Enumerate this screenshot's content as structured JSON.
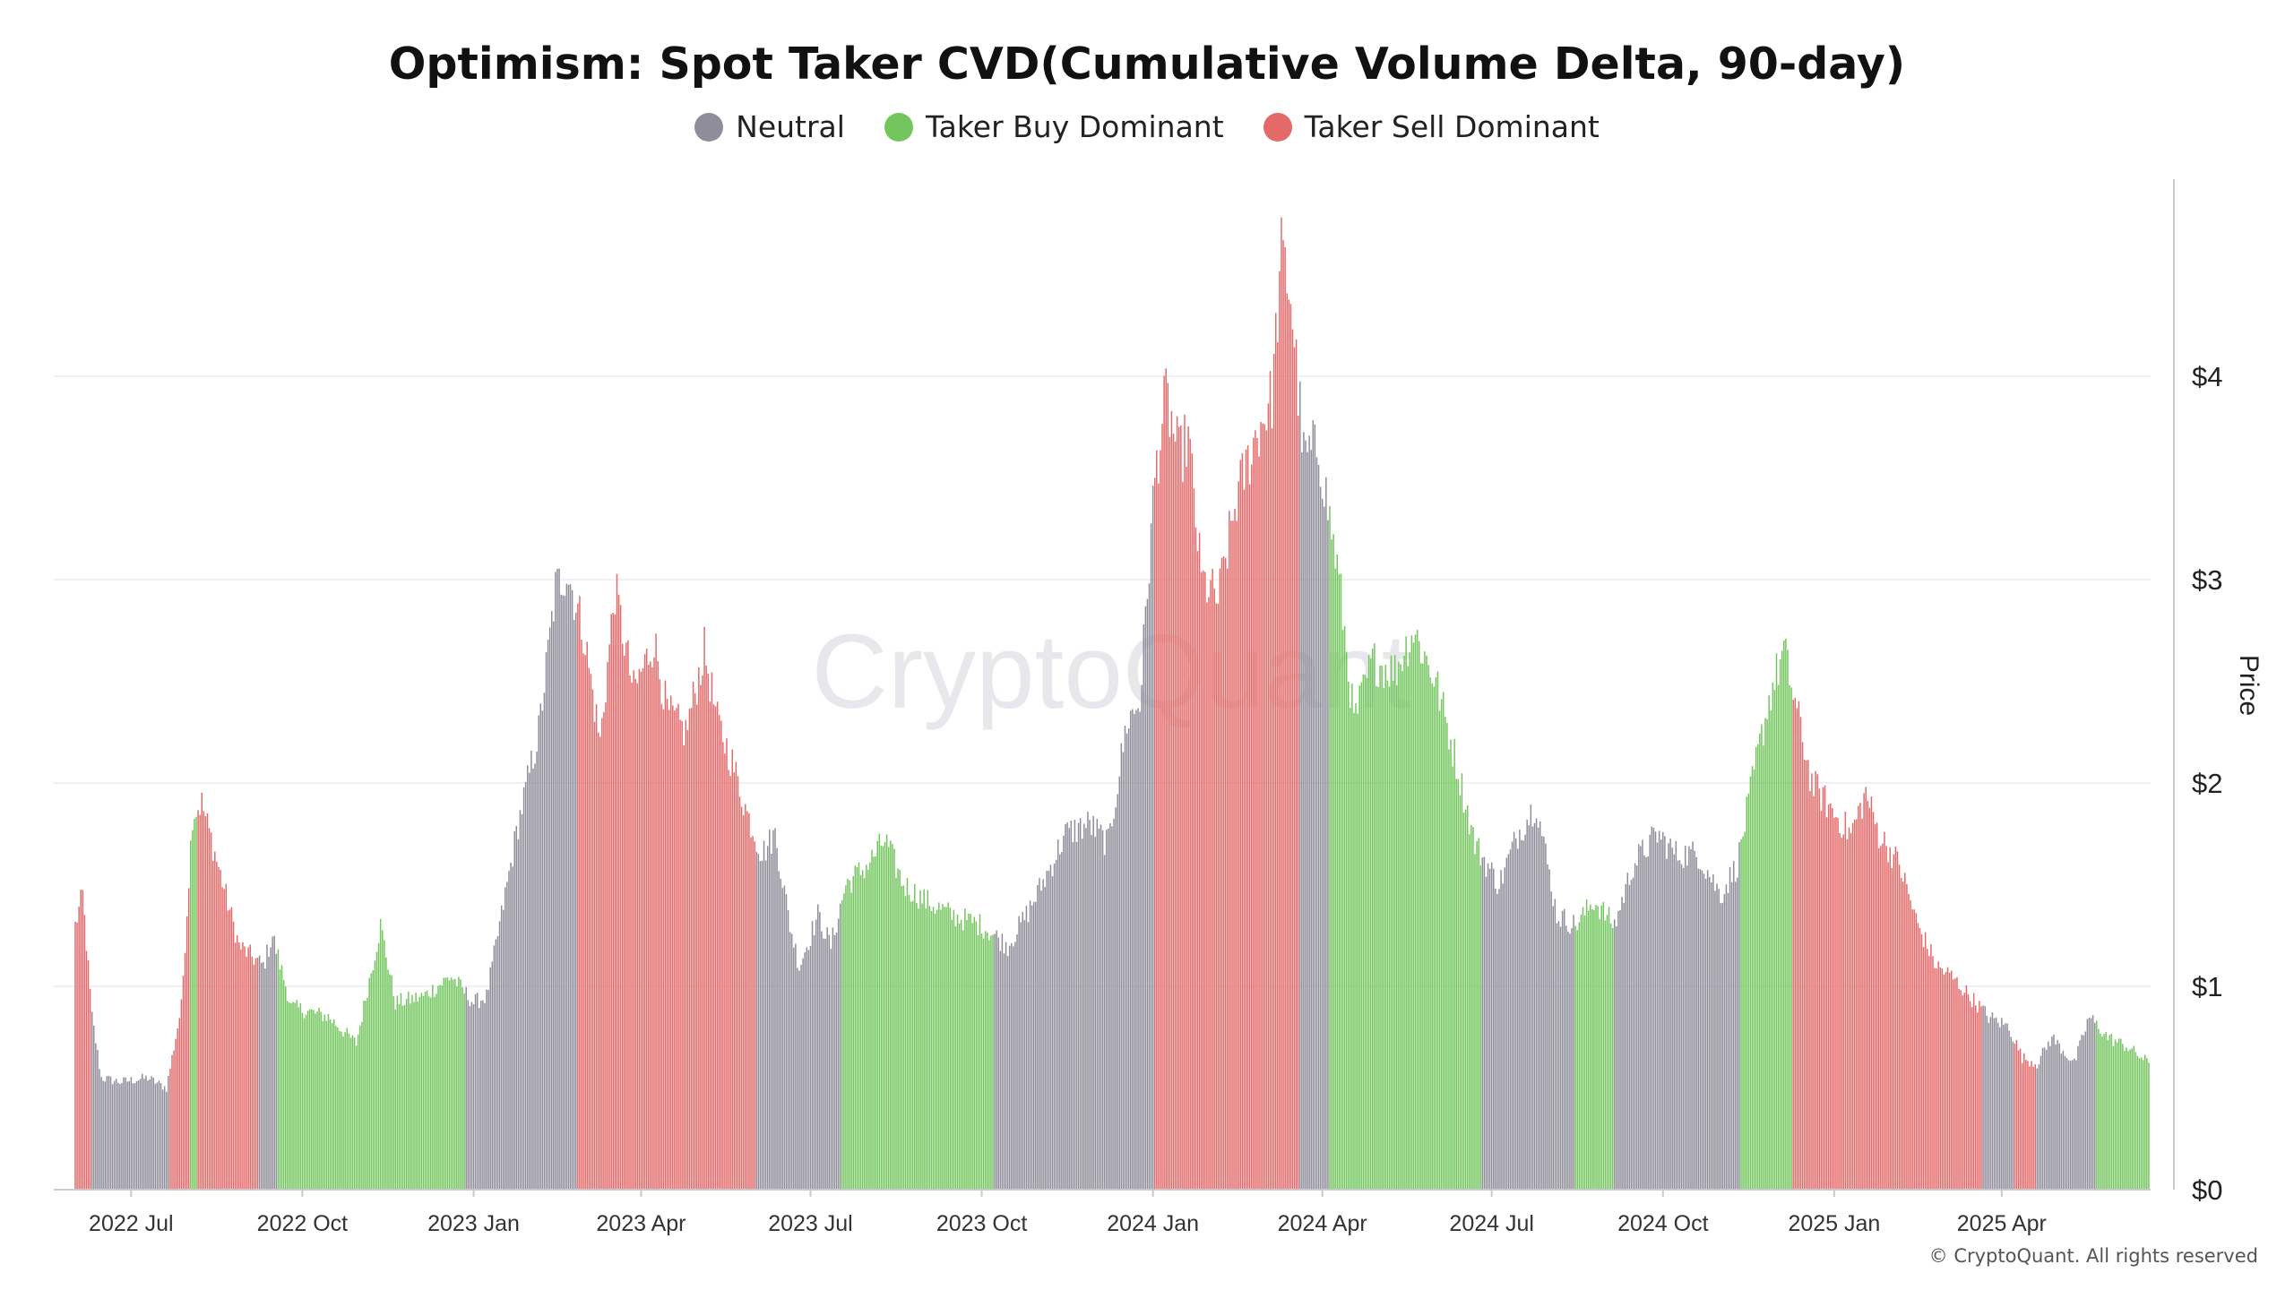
{
  "chart_data": {
    "type": "bar",
    "title": "Optimism: Spot Taker CVD(Cumulative Volume Delta, 90-day)",
    "xlabel": "",
    "ylabel": "Price",
    "y_ticks": [
      "$0",
      "$1",
      "$2",
      "$3",
      "$4"
    ],
    "ylim": [
      0,
      4.9
    ],
    "x_ticks": [
      "2022 Jul",
      "2022 Oct",
      "2023 Jan",
      "2023 Apr",
      "2023 Jul",
      "2023 Oct",
      "2024 Jan",
      "2024 Apr",
      "2024 Jul",
      "2024 Oct",
      "2025 Jan",
      "2025 Apr"
    ],
    "xlim": [
      "2022-06-01",
      "2025-06-20"
    ],
    "grid": true,
    "legend_position": "top-center",
    "series": [
      {
        "name": "Neutral",
        "color": "#8e8d99"
      },
      {
        "name": "Taker Buy Dominant",
        "color": "#72c65d"
      },
      {
        "name": "Taker Sell Dominant",
        "color": "#e46a6a"
      }
    ],
    "price_points": [
      [
        "2022-06-01",
        1.3
      ],
      [
        "2022-06-05",
        1.45
      ],
      [
        "2022-06-10",
        0.85
      ],
      [
        "2022-06-15",
        0.55
      ],
      [
        "2022-06-25",
        0.53
      ],
      [
        "2022-07-10",
        0.55
      ],
      [
        "2022-07-20",
        0.5
      ],
      [
        "2022-07-28",
        0.9
      ],
      [
        "2022-08-03",
        1.85
      ],
      [
        "2022-08-08",
        1.9
      ],
      [
        "2022-08-18",
        1.55
      ],
      [
        "2022-08-28",
        1.2
      ],
      [
        "2022-09-10",
        1.1
      ],
      [
        "2022-09-15",
        1.25
      ],
      [
        "2022-09-25",
        0.9
      ],
      [
        "2022-10-15",
        0.85
      ],
      [
        "2022-10-30",
        0.72
      ],
      [
        "2022-11-08",
        1.12
      ],
      [
        "2022-11-12",
        1.3
      ],
      [
        "2022-11-20",
        0.92
      ],
      [
        "2022-12-05",
        0.95
      ],
      [
        "2022-12-20",
        1.05
      ],
      [
        "2023-01-01",
        0.92
      ],
      [
        "2023-01-08",
        0.95
      ],
      [
        "2023-01-15",
        1.3
      ],
      [
        "2023-01-25",
        1.8
      ],
      [
        "2023-02-05",
        2.25
      ],
      [
        "2023-02-14",
        2.95
      ],
      [
        "2023-02-20",
        3.05
      ],
      [
        "2023-03-01",
        2.75
      ],
      [
        "2023-03-10",
        2.2
      ],
      [
        "2023-03-18",
        2.95
      ],
      [
        "2023-03-28",
        2.45
      ],
      [
        "2023-04-08",
        2.7
      ],
      [
        "2023-04-15",
        2.35
      ],
      [
        "2023-04-25",
        2.25
      ],
      [
        "2023-05-05",
        2.65
      ],
      [
        "2023-05-12",
        2.3
      ],
      [
        "2023-05-20",
        2.1
      ],
      [
        "2023-05-28",
        1.85
      ],
      [
        "2023-06-05",
        1.65
      ],
      [
        "2023-06-12",
        1.75
      ],
      [
        "2023-06-20",
        1.3
      ],
      [
        "2023-06-25",
        1.1
      ],
      [
        "2023-07-05",
        1.35
      ],
      [
        "2023-07-12",
        1.2
      ],
      [
        "2023-07-20",
        1.5
      ],
      [
        "2023-08-01",
        1.6
      ],
      [
        "2023-08-10",
        1.72
      ],
      [
        "2023-08-20",
        1.5
      ],
      [
        "2023-09-01",
        1.42
      ],
      [
        "2023-09-15",
        1.35
      ],
      [
        "2023-10-01",
        1.3
      ],
      [
        "2023-10-15",
        1.2
      ],
      [
        "2023-10-25",
        1.35
      ],
      [
        "2023-11-05",
        1.55
      ],
      [
        "2023-11-15",
        1.75
      ],
      [
        "2023-11-28",
        1.8
      ],
      [
        "2023-12-08",
        1.7
      ],
      [
        "2023-12-18",
        2.3
      ],
      [
        "2023-12-25",
        2.4
      ],
      [
        "2024-01-02",
        3.5
      ],
      [
        "2024-01-08",
        3.9
      ],
      [
        "2024-01-15",
        3.6
      ],
      [
        "2024-01-20",
        3.7
      ],
      [
        "2024-01-27",
        3.0
      ],
      [
        "2024-02-05",
        2.9
      ],
      [
        "2024-02-15",
        3.4
      ],
      [
        "2024-02-25",
        3.7
      ],
      [
        "2024-03-05",
        3.9
      ],
      [
        "2024-03-10",
        4.6
      ],
      [
        "2024-03-15",
        4.4
      ],
      [
        "2024-03-22",
        3.6
      ],
      [
        "2024-03-30",
        3.65
      ],
      [
        "2024-04-10",
        3.0
      ],
      [
        "2024-04-18",
        2.3
      ],
      [
        "2024-04-28",
        2.6
      ],
      [
        "2024-05-10",
        2.55
      ],
      [
        "2024-05-20",
        2.75
      ],
      [
        "2024-06-01",
        2.5
      ],
      [
        "2024-06-12",
        2.1
      ],
      [
        "2024-06-22",
        1.7
      ],
      [
        "2024-07-05",
        1.5
      ],
      [
        "2024-07-15",
        1.75
      ],
      [
        "2024-07-25",
        1.9
      ],
      [
        "2024-08-05",
        1.35
      ],
      [
        "2024-08-15",
        1.3
      ],
      [
        "2024-08-25",
        1.42
      ],
      [
        "2024-09-05",
        1.3
      ],
      [
        "2024-09-15",
        1.6
      ],
      [
        "2024-09-28",
        1.75
      ],
      [
        "2024-10-08",
        1.65
      ],
      [
        "2024-10-20",
        1.65
      ],
      [
        "2024-11-01",
        1.45
      ],
      [
        "2024-11-10",
        1.6
      ],
      [
        "2024-11-20",
        2.1
      ],
      [
        "2024-11-28",
        2.45
      ],
      [
        "2024-12-05",
        2.65
      ],
      [
        "2024-12-12",
        2.35
      ],
      [
        "2024-12-20",
        2.0
      ],
      [
        "2025-01-01",
        1.85
      ],
      [
        "2025-01-10",
        1.75
      ],
      [
        "2025-01-18",
        1.95
      ],
      [
        "2025-01-25",
        1.75
      ],
      [
        "2025-02-05",
        1.6
      ],
      [
        "2025-02-15",
        1.3
      ],
      [
        "2025-02-25",
        1.1
      ],
      [
        "2025-03-05",
        1.05
      ],
      [
        "2025-03-15",
        0.95
      ],
      [
        "2025-03-25",
        0.85
      ],
      [
        "2025-04-05",
        0.8
      ],
      [
        "2025-04-12",
        0.65
      ],
      [
        "2025-04-20",
        0.62
      ],
      [
        "2025-04-28",
        0.75
      ],
      [
        "2025-05-10",
        0.62
      ],
      [
        "2025-05-18",
        0.85
      ],
      [
        "2025-05-28",
        0.75
      ],
      [
        "2025-06-08",
        0.7
      ],
      [
        "2025-06-18",
        0.63
      ]
    ],
    "regimes": [
      {
        "start": "2022-06-01",
        "end": "2022-06-10",
        "class": "Taker Sell Dominant"
      },
      {
        "start": "2022-06-10",
        "end": "2022-07-22",
        "class": "Neutral"
      },
      {
        "start": "2022-07-22",
        "end": "2022-08-02",
        "class": "Taker Sell Dominant"
      },
      {
        "start": "2022-08-02",
        "end": "2022-08-06",
        "class": "Taker Buy Dominant"
      },
      {
        "start": "2022-08-06",
        "end": "2022-09-08",
        "class": "Taker Sell Dominant"
      },
      {
        "start": "2022-09-08",
        "end": "2022-09-18",
        "class": "Neutral"
      },
      {
        "start": "2022-09-18",
        "end": "2022-12-28",
        "class": "Taker Buy Dominant"
      },
      {
        "start": "2022-12-28",
        "end": "2023-02-26",
        "class": "Neutral"
      },
      {
        "start": "2023-02-26",
        "end": "2023-06-02",
        "class": "Taker Sell Dominant"
      },
      {
        "start": "2023-06-02",
        "end": "2023-07-18",
        "class": "Neutral"
      },
      {
        "start": "2023-07-18",
        "end": "2023-10-08",
        "class": "Taker Buy Dominant"
      },
      {
        "start": "2023-10-08",
        "end": "2024-01-02",
        "class": "Neutral"
      },
      {
        "start": "2024-01-02",
        "end": "2024-03-20",
        "class": "Taker Sell Dominant"
      },
      {
        "start": "2024-03-20",
        "end": "2024-04-05",
        "class": "Neutral"
      },
      {
        "start": "2024-04-05",
        "end": "2024-06-26",
        "class": "Taker Buy Dominant"
      },
      {
        "start": "2024-06-26",
        "end": "2024-08-15",
        "class": "Neutral"
      },
      {
        "start": "2024-08-15",
        "end": "2024-09-05",
        "class": "Taker Buy Dominant"
      },
      {
        "start": "2024-09-05",
        "end": "2024-11-12",
        "class": "Neutral"
      },
      {
        "start": "2024-11-12",
        "end": "2024-12-10",
        "class": "Taker Buy Dominant"
      },
      {
        "start": "2024-12-10",
        "end": "2025-03-22",
        "class": "Taker Sell Dominant"
      },
      {
        "start": "2025-03-22",
        "end": "2025-04-08",
        "class": "Neutral"
      },
      {
        "start": "2025-04-08",
        "end": "2025-04-20",
        "class": "Taker Sell Dominant"
      },
      {
        "start": "2025-04-20",
        "end": "2025-05-22",
        "class": "Neutral"
      },
      {
        "start": "2025-05-22",
        "end": "2025-06-20",
        "class": "Taker Buy Dominant"
      }
    ]
  },
  "watermark": "CryptoQuant",
  "copyright": "© CryptoQuant. All rights reserved"
}
